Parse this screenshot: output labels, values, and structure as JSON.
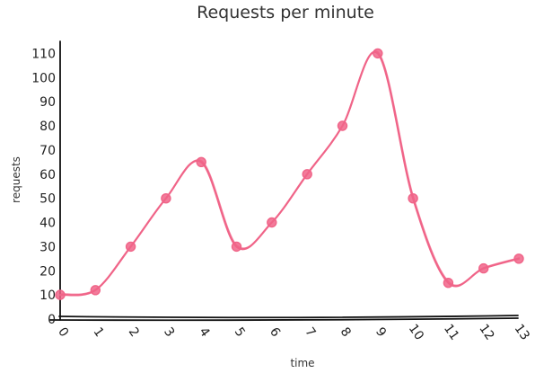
{
  "chart_data": {
    "type": "line",
    "title": "Requests per minute",
    "xlabel": "time",
    "ylabel": "requests",
    "x": [
      0,
      1,
      2,
      3,
      4,
      5,
      6,
      7,
      8,
      9,
      10,
      11,
      12,
      13
    ],
    "series": [
      {
        "values": [
          10,
          12,
          30,
          50,
          65,
          30,
          40,
          60,
          80,
          110,
          50,
          15,
          21,
          25
        ],
        "color": "#f06488"
      }
    ],
    "xlim": [
      0,
      13
    ],
    "ylim": [
      0,
      115
    ],
    "xticks": [
      "0",
      "1",
      "2",
      "3",
      "4",
      "5",
      "6",
      "7",
      "8",
      "9",
      "10",
      "11",
      "12",
      "13"
    ],
    "yticks": [
      "0",
      "10",
      "20",
      "30",
      "40",
      "50",
      "60",
      "70",
      "80",
      "90",
      "100",
      "110"
    ],
    "grid": false,
    "smooth": true
  }
}
